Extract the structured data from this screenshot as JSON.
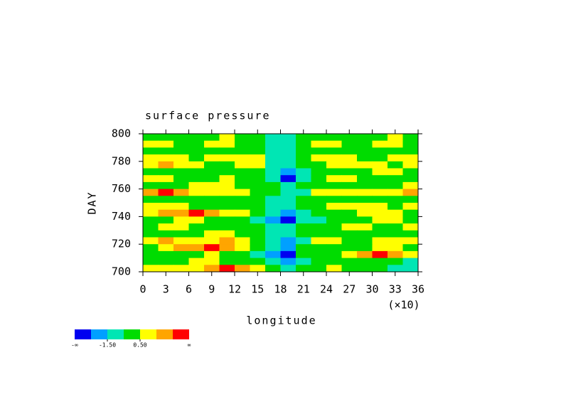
{
  "chart_data": {
    "type": "heatmap",
    "title": "surface pressure",
    "x_label": "longitude",
    "x_multiplier_label": "(×10)",
    "y_label": "DAY",
    "xlim": [
      0,
      36
    ],
    "xticks": [
      0,
      3,
      6,
      9,
      12,
      15,
      18,
      21,
      24,
      27,
      30,
      33,
      36
    ],
    "ylim": [
      700,
      800
    ],
    "yticks": [
      700,
      720,
      740,
      760,
      780,
      800
    ],
    "x": [
      1,
      3,
      5,
      7,
      9,
      11,
      13,
      15,
      17,
      19,
      21,
      23,
      25,
      27,
      29,
      31,
      33,
      35
    ],
    "y": [
      797.5,
      792.5,
      787.5,
      782.5,
      777.5,
      772.5,
      767.5,
      762.5,
      757.5,
      752.5,
      747.5,
      742.5,
      737.5,
      732.5,
      727.5,
      722.5,
      717.5,
      712.5,
      707.5,
      702.5
    ],
    "z": [
      [
        0,
        0,
        0,
        0,
        0,
        1,
        0,
        0,
        -1,
        -1,
        0,
        0,
        0,
        0,
        0,
        0,
        1,
        0
      ],
      [
        1,
        1,
        0,
        0,
        1,
        1,
        0,
        0,
        -1,
        -1,
        0,
        1,
        1,
        0,
        0,
        1,
        1,
        0
      ],
      [
        0,
        0,
        0,
        0,
        0,
        0,
        0,
        0,
        -1,
        -1,
        0,
        0,
        0,
        0,
        0,
        0,
        0,
        0
      ],
      [
        1,
        1,
        1,
        0,
        1,
        1,
        1,
        1,
        -1,
        -1,
        0,
        1,
        1,
        1,
        0,
        0,
        1,
        1
      ],
      [
        1,
        2,
        1,
        1,
        0,
        0,
        1,
        1,
        -1,
        -1,
        0,
        0,
        1,
        1,
        1,
        1,
        0,
        1
      ],
      [
        0,
        0,
        0,
        0,
        0,
        0,
        0,
        0,
        -1,
        -2,
        -1,
        0,
        0,
        0,
        0,
        1,
        1,
        0
      ],
      [
        1,
        1,
        0,
        0,
        0,
        1,
        0,
        0,
        -1,
        -3,
        -1,
        0,
        1,
        1,
        0,
        0,
        0,
        0
      ],
      [
        0,
        0,
        0,
        1,
        1,
        1,
        0,
        0,
        0,
        -1,
        0,
        0,
        0,
        0,
        0,
        0,
        0,
        1
      ],
      [
        2,
        3,
        2,
        1,
        1,
        1,
        1,
        0,
        0,
        -1,
        -1,
        1,
        1,
        1,
        1,
        1,
        1,
        2
      ],
      [
        0,
        0,
        0,
        0,
        0,
        0,
        0,
        0,
        -1,
        -1,
        0,
        0,
        0,
        0,
        0,
        0,
        0,
        0
      ],
      [
        1,
        1,
        1,
        0,
        0,
        0,
        0,
        0,
        -1,
        -1,
        0,
        0,
        1,
        1,
        1,
        1,
        0,
        1
      ],
      [
        1,
        2,
        2,
        3,
        2,
        1,
        1,
        0,
        -1,
        -2,
        -1,
        0,
        0,
        0,
        1,
        1,
        1,
        0
      ],
      [
        0,
        0,
        1,
        1,
        0,
        0,
        0,
        -1,
        -2,
        -3,
        -1,
        -1,
        0,
        0,
        0,
        1,
        1,
        0
      ],
      [
        0,
        1,
        1,
        0,
        0,
        0,
        0,
        0,
        -1,
        -1,
        0,
        0,
        0,
        1,
        1,
        0,
        0,
        1
      ],
      [
        0,
        0,
        0,
        0,
        1,
        1,
        0,
        0,
        -1,
        -1,
        0,
        0,
        0,
        0,
        0,
        0,
        0,
        0
      ],
      [
        1,
        2,
        1,
        1,
        1,
        2,
        1,
        0,
        -1,
        -2,
        -1,
        1,
        1,
        0,
        0,
        1,
        1,
        1
      ],
      [
        0,
        1,
        2,
        2,
        3,
        2,
        1,
        0,
        -1,
        -2,
        0,
        0,
        0,
        0,
        0,
        1,
        1,
        0
      ],
      [
        0,
        0,
        0,
        0,
        1,
        0,
        0,
        -1,
        -2,
        -3,
        0,
        0,
        0,
        1,
        2,
        3,
        2,
        1
      ],
      [
        0,
        0,
        0,
        1,
        1,
        0,
        0,
        0,
        -1,
        -2,
        -1,
        0,
        0,
        0,
        0,
        0,
        0,
        -1
      ],
      [
        1,
        1,
        1,
        1,
        2,
        3,
        2,
        1,
        0,
        -1,
        0,
        0,
        1,
        0,
        0,
        0,
        -1,
        -1
      ]
    ],
    "colorbar": {
      "colors": [
        "#0000f0",
        "#00a0ff",
        "#00e6b4",
        "#00dc00",
        "#ffff00",
        "#ffa500",
        "#ff0000"
      ],
      "bounds": [
        -2.5,
        -1.5,
        -0.5,
        0.5,
        1.5,
        2.5
      ],
      "ticks": [
        {
          "value": -1.5,
          "label": "-1.50"
        },
        {
          "value": 0.5,
          "label": "0.50"
        }
      ],
      "low_label": "-∞",
      "high_label": "∞"
    }
  }
}
